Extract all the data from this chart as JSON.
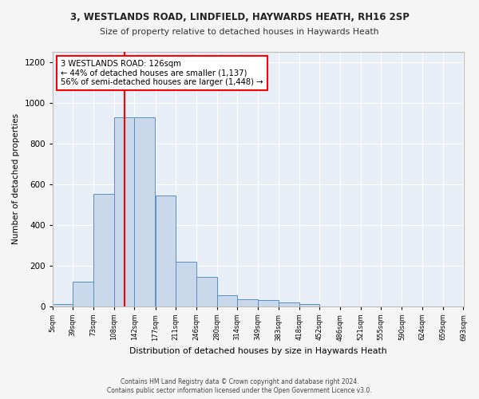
{
  "title1": "3, WESTLANDS ROAD, LINDFIELD, HAYWARDS HEATH, RH16 2SP",
  "title2": "Size of property relative to detached houses in Haywards Heath",
  "xlabel": "Distribution of detached houses by size in Haywards Heath",
  "ylabel": "Number of detached properties",
  "footer1": "Contains HM Land Registry data © Crown copyright and database right 2024.",
  "footer2": "Contains public sector information licensed under the Open Government Licence v3.0.",
  "annotation_line1": "3 WESTLANDS ROAD: 126sqm",
  "annotation_line2": "← 44% of detached houses are smaller (1,137)",
  "annotation_line3": "56% of semi-detached houses are larger (1,448) →",
  "bar_color": "#c9d9eb",
  "bar_edge_color": "#5a8fc0",
  "red_line_x": 126,
  "bin_edges": [
    5,
    39,
    73,
    108,
    142,
    177,
    211,
    246,
    280,
    314,
    349,
    383,
    418,
    452,
    486,
    521,
    555,
    590,
    624,
    659,
    693
  ],
  "bar_heights": [
    10,
    120,
    550,
    930,
    930,
    545,
    220,
    145,
    55,
    35,
    30,
    20,
    10,
    0,
    0,
    0,
    0,
    0,
    0,
    0
  ],
  "ylim": [
    0,
    1250
  ],
  "yticks": [
    0,
    200,
    400,
    600,
    800,
    1000,
    1200
  ],
  "background_color": "#e8eef6",
  "grid_color": "#ffffff",
  "tick_labels": [
    "5sqm",
    "39sqm",
    "73sqm",
    "108sqm",
    "142sqm",
    "177sqm",
    "211sqm",
    "246sqm",
    "280sqm",
    "314sqm",
    "349sqm",
    "383sqm",
    "418sqm",
    "452sqm",
    "486sqm",
    "521sqm",
    "555sqm",
    "590sqm",
    "624sqm",
    "659sqm",
    "693sqm"
  ],
  "fig_bg": "#f5f5f5"
}
